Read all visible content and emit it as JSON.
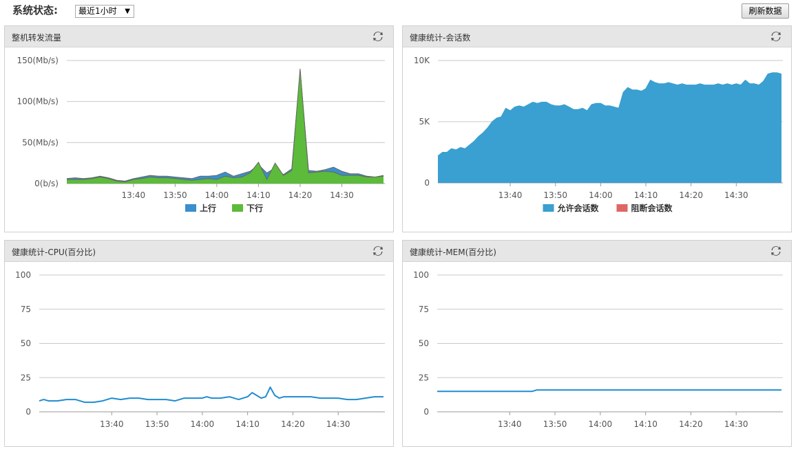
{
  "header": {
    "title": "系统状态:",
    "range_selected": "最近1小时",
    "refresh_label": "刷新数据"
  },
  "colors": {
    "up": "#3a8fcc",
    "down": "#5cbb3a",
    "allowed": "#3a9fd1",
    "blocked": "#e06666",
    "line": "#1e8bd1"
  },
  "panels": [
    {
      "title": "整机转发流量",
      "icon": "refresh-icon"
    },
    {
      "title": "健康统计-会话数",
      "icon": "refresh-icon"
    },
    {
      "title": "健康统计-CPU(百分比)",
      "icon": "refresh-icon"
    },
    {
      "title": "健康统计-MEM(百分比)",
      "icon": "refresh-icon"
    }
  ],
  "chart_data": [
    {
      "type": "area",
      "x_tick_labels": [
        "13:40",
        "13:50",
        "14:00",
        "14:10",
        "14:20",
        "14:30"
      ],
      "y_tick_labels": [
        "0(b/s)",
        "50(Mb/s)",
        "100(Mb/s)",
        "150(Mb/s)"
      ],
      "ylim": [
        0,
        150
      ],
      "x_range_min": [
        -16,
        60
      ],
      "legend": "bottom-center",
      "grid": true,
      "series": [
        {
          "name": "上行",
          "color": "#3a8fcc",
          "x": [
            -16,
            -14,
            -12,
            -10,
            -8,
            -6,
            -4,
            -2,
            0,
            2,
            4,
            6,
            8,
            10,
            12,
            14,
            16,
            18,
            20,
            22,
            24,
            26,
            28,
            30,
            32,
            34,
            36,
            38,
            40,
            42,
            44,
            46,
            48,
            50,
            52,
            54,
            56,
            58,
            60
          ],
          "values": [
            6,
            7,
            6,
            7,
            9,
            7,
            4,
            3,
            6,
            8,
            10,
            9,
            9,
            8,
            7,
            6,
            9,
            9,
            10,
            14,
            9,
            12,
            15,
            23,
            13,
            19,
            11,
            18,
            138,
            16,
            15,
            17,
            20,
            15,
            12,
            12,
            9,
            8,
            10
          ]
        },
        {
          "name": "下行",
          "color": "#5cbb3a",
          "x": [
            -16,
            -14,
            -12,
            -10,
            -8,
            -6,
            -4,
            -2,
            0,
            2,
            4,
            6,
            8,
            10,
            12,
            14,
            16,
            18,
            20,
            22,
            24,
            26,
            28,
            30,
            32,
            34,
            36,
            38,
            40,
            42,
            44,
            46,
            48,
            50,
            52,
            54,
            56,
            58,
            60
          ],
          "values": [
            5,
            5,
            5,
            6,
            8,
            6,
            3,
            2,
            5,
            6,
            8,
            7,
            7,
            6,
            5,
            4,
            5,
            6,
            5,
            9,
            7,
            8,
            13,
            26,
            5,
            25,
            10,
            16,
            140,
            13,
            14,
            15,
            14,
            10,
            10,
            10,
            8,
            8,
            9
          ]
        }
      ]
    },
    {
      "type": "area",
      "x_tick_labels": [
        "13:40",
        "13:50",
        "14:00",
        "14:10",
        "14:20",
        "14:30"
      ],
      "y_tick_labels": [
        "0",
        "5K",
        "10K"
      ],
      "ylim": [
        0,
        10000
      ],
      "x_range_min": [
        -16,
        60
      ],
      "legend": "bottom-center",
      "grid": true,
      "series": [
        {
          "name": "允许会话数",
          "color": "#3a9fd1",
          "x": [
            -16,
            -15,
            -14,
            -13,
            -12,
            -11,
            -10,
            -9,
            -8,
            -7,
            -6,
            -5,
            -4,
            -3,
            -2,
            -1,
            0,
            1,
            2,
            3,
            4,
            5,
            6,
            7,
            8,
            9,
            10,
            11,
            12,
            13,
            14,
            15,
            16,
            17,
            18,
            19,
            20,
            21,
            22,
            23,
            24,
            25,
            26,
            27,
            28,
            29,
            30,
            31,
            32,
            33,
            34,
            35,
            36,
            37,
            38,
            39,
            40,
            41,
            42,
            43,
            44,
            45,
            46,
            47,
            48,
            49,
            50,
            51,
            52,
            53,
            54,
            55,
            56,
            57,
            58,
            59,
            60
          ],
          "values": [
            2200,
            2500,
            2500,
            2800,
            2700,
            2900,
            2800,
            3100,
            3400,
            3800,
            4100,
            4500,
            5000,
            5300,
            5400,
            6100,
            5900,
            6200,
            6300,
            6200,
            6400,
            6600,
            6500,
            6600,
            6600,
            6400,
            6300,
            6300,
            6400,
            6200,
            6000,
            6000,
            6100,
            5900,
            6400,
            6500,
            6500,
            6300,
            6300,
            6200,
            6100,
            7400,
            7800,
            7600,
            7600,
            7500,
            7700,
            8400,
            8200,
            8100,
            8100,
            8200,
            8100,
            8000,
            8100,
            8000,
            8000,
            8000,
            8100,
            8000,
            8000,
            8000,
            8100,
            8000,
            8100,
            8000,
            8100,
            8000,
            8400,
            8100,
            8100,
            8000,
            8300,
            8900,
            9000,
            9000,
            8900
          ]
        },
        {
          "name": "阻断会话数",
          "color": "#e06666",
          "values": []
        }
      ]
    },
    {
      "type": "line",
      "x_tick_labels": [
        "13:40",
        "13:50",
        "14:00",
        "14:10",
        "14:20",
        "14:30"
      ],
      "y_tick_labels": [
        "0",
        "25",
        "50",
        "75",
        "100"
      ],
      "ylim": [
        0,
        100
      ],
      "x_range_min": [
        -16,
        60
      ],
      "grid": true,
      "series": [
        {
          "color": "#1e8bd1",
          "x": [
            -16,
            -15,
            -14,
            -12,
            -10,
            -8,
            -6,
            -4,
            -2,
            0,
            2,
            4,
            6,
            8,
            10,
            12,
            14,
            16,
            18,
            20,
            21,
            22,
            24,
            26,
            28,
            30,
            31,
            32,
            33,
            34,
            35,
            36,
            37,
            38,
            40,
            42,
            44,
            46,
            48,
            50,
            52,
            54,
            56,
            58,
            60
          ],
          "values": [
            8,
            9,
            8,
            8,
            9,
            9,
            7,
            7,
            8,
            10,
            9,
            10,
            10,
            9,
            9,
            9,
            8,
            10,
            10,
            10,
            11,
            10,
            10,
            11,
            9,
            11,
            14,
            12,
            10,
            11,
            18,
            12,
            10,
            11,
            11,
            11,
            11,
            10,
            10,
            10,
            9,
            9,
            10,
            11,
            11
          ]
        }
      ]
    },
    {
      "type": "line",
      "x_tick_labels": [
        "13:40",
        "13:50",
        "14:00",
        "14:10",
        "14:20",
        "14:30"
      ],
      "y_tick_labels": [
        "0",
        "25",
        "50",
        "75",
        "100"
      ],
      "ylim": [
        0,
        100
      ],
      "x_range_min": [
        -16,
        60
      ],
      "grid": true,
      "series": [
        {
          "color": "#1e8bd1",
          "x": [
            -16,
            -10,
            0,
            5,
            6,
            10,
            20,
            30,
            40,
            50,
            60
          ],
          "values": [
            15,
            15,
            15,
            15,
            16,
            16,
            16,
            16,
            16,
            16,
            16
          ]
        }
      ]
    }
  ]
}
